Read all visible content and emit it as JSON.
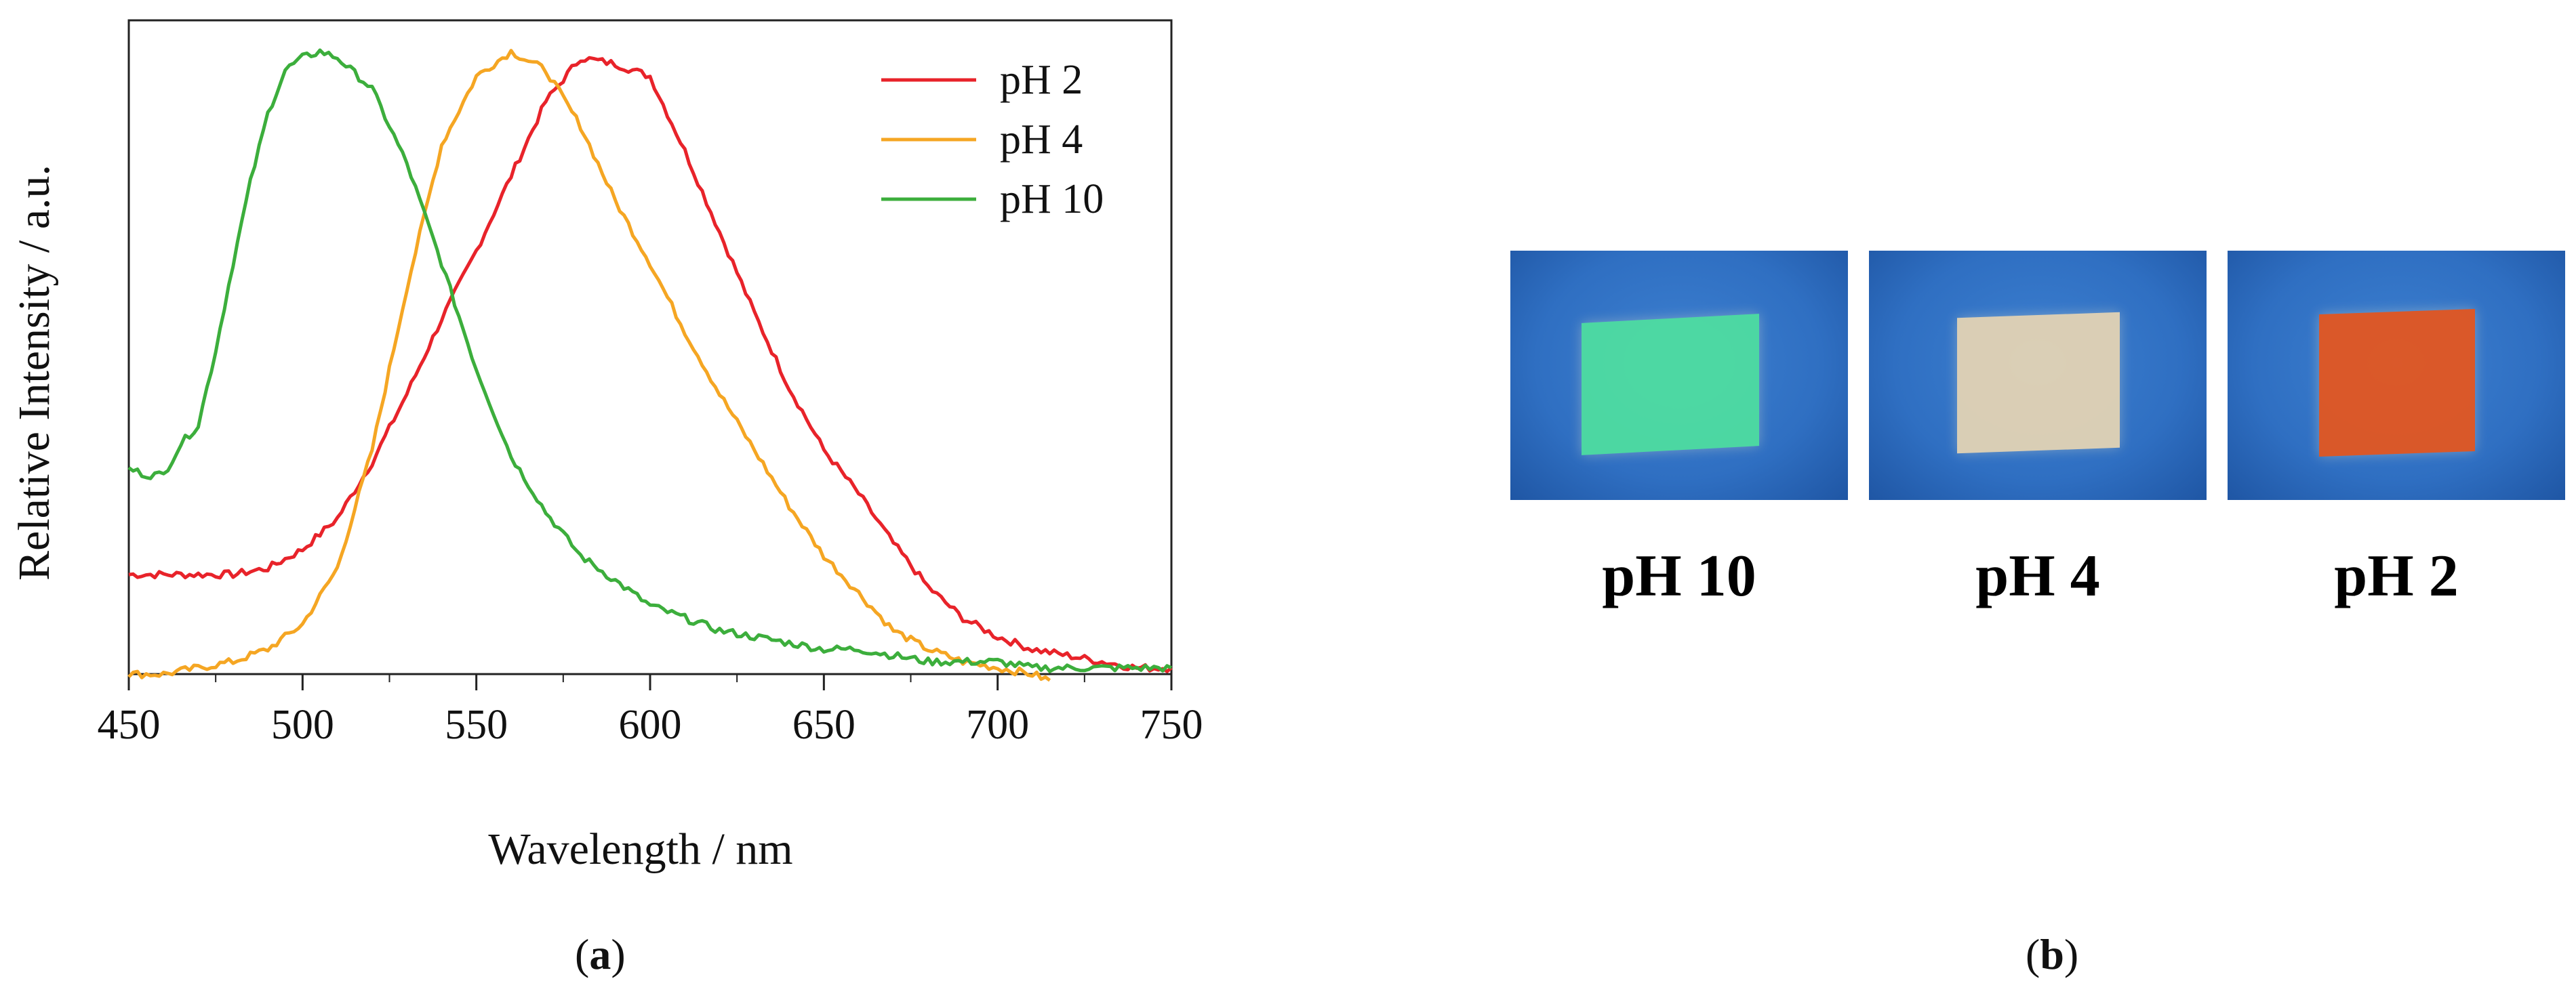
{
  "chart_data": {
    "type": "line",
    "xlabel": "Wavelength / nm",
    "ylabel": "Relative Intensity / a.u.",
    "xlim": [
      450,
      750
    ],
    "ylim": [
      0,
      1.05
    ],
    "xticks": [
      450,
      500,
      550,
      600,
      650,
      700,
      750
    ],
    "legend_position": "top-right",
    "series": [
      {
        "name": "pH 2",
        "color": "#e8232a",
        "x": [
          450,
          460,
          470,
          480,
          490,
          500,
          510,
          520,
          530,
          540,
          550,
          560,
          570,
          580,
          590,
          600,
          610,
          620,
          630,
          640,
          650,
          660,
          670,
          680,
          690,
          700,
          710,
          720,
          730,
          740,
          750
        ],
        "y": [
          0.16,
          0.16,
          0.16,
          0.16,
          0.17,
          0.2,
          0.25,
          0.34,
          0.45,
          0.57,
          0.68,
          0.8,
          0.92,
          0.99,
          0.98,
          0.96,
          0.84,
          0.71,
          0.58,
          0.46,
          0.36,
          0.29,
          0.21,
          0.14,
          0.09,
          0.06,
          0.04,
          0.03,
          0.02,
          0.01,
          0.01
        ]
      },
      {
        "name": "pH 4",
        "color": "#f5a623",
        "x": [
          450,
          460,
          470,
          480,
          490,
          500,
          510,
          520,
          530,
          540,
          550,
          560,
          570,
          580,
          590,
          600,
          610,
          620,
          630,
          640,
          650,
          660,
          670,
          680,
          690,
          700,
          710,
          715
        ],
        "y": [
          0.0,
          0.0,
          0.01,
          0.02,
          0.04,
          0.08,
          0.17,
          0.36,
          0.62,
          0.85,
          0.96,
          1.0,
          0.97,
          0.88,
          0.76,
          0.66,
          0.55,
          0.45,
          0.36,
          0.27,
          0.19,
          0.13,
          0.07,
          0.04,
          0.02,
          0.01,
          0.0,
          -0.01
        ]
      },
      {
        "name": "pH 10",
        "color": "#3cae3c",
        "x": [
          450,
          455,
          460,
          465,
          470,
          475,
          480,
          485,
          490,
          495,
          500,
          505,
          510,
          520,
          530,
          540,
          550,
          560,
          570,
          580,
          590,
          600,
          610,
          620,
          630,
          640,
          650,
          660,
          670,
          680,
          690,
          700,
          710,
          720,
          730,
          740,
          750
        ],
        "y": [
          0.33,
          0.32,
          0.32,
          0.37,
          0.4,
          0.52,
          0.66,
          0.79,
          0.9,
          0.97,
          0.99,
          1.0,
          0.99,
          0.94,
          0.82,
          0.66,
          0.49,
          0.35,
          0.26,
          0.19,
          0.15,
          0.11,
          0.09,
          0.07,
          0.06,
          0.05,
          0.04,
          0.04,
          0.03,
          0.02,
          0.02,
          0.02,
          0.01,
          0.01,
          0.01,
          0.01,
          0.01
        ]
      }
    ]
  },
  "panels": {
    "a_label": "a",
    "b_label": "b"
  },
  "photos": [
    {
      "caption": "pH 10",
      "film_color": "#4fe0a0"
    },
    {
      "caption": "pH 4",
      "film_color": "#e8d6b4"
    },
    {
      "caption": "pH 2",
      "film_color": "#e8561c"
    }
  ],
  "colors": {
    "photo_background": "#2f6fc2",
    "axis": "#222222"
  }
}
